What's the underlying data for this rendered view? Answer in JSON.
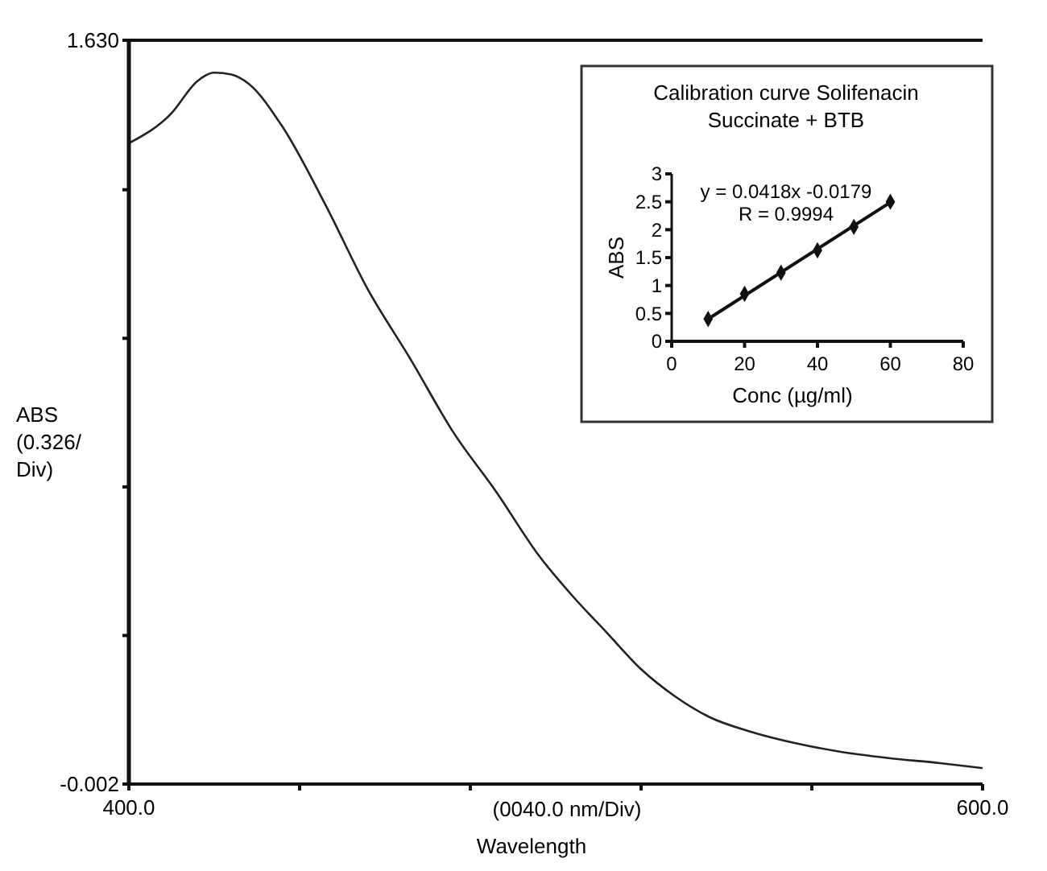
{
  "chart_data": [
    {
      "type": "line",
      "xlabel": "(0040.0 nm/Div)\nWavelength",
      "ylabel": "ABS\n(0.326/\nDiv)",
      "x": [
        400,
        410,
        416,
        420,
        424,
        428,
        436,
        446,
        456,
        466,
        476,
        486,
        496,
        504,
        512,
        520,
        528,
        536,
        546,
        556,
        566,
        578,
        590,
        600
      ],
      "series": [
        {
          "color": "#222222",
          "values": [
            1.404,
            1.47,
            1.54,
            1.559,
            1.555,
            1.535,
            1.44,
            1.27,
            1.083,
            0.93,
            0.77,
            0.64,
            0.5,
            0.41,
            0.33,
            0.25,
            0.19,
            0.145,
            0.112,
            0.088,
            0.07,
            0.055,
            0.044,
            0.033
          ]
        }
      ],
      "xlim": [
        400,
        600
      ],
      "xticks": [
        {
          "value": 400,
          "label": "400.0"
        },
        {
          "value": 440,
          "label": null
        },
        {
          "value": 480,
          "label": null
        },
        {
          "value": 520,
          "label": null
        },
        {
          "value": 560,
          "label": null
        },
        {
          "value": 600,
          "label": "600.0"
        }
      ],
      "ylim": [
        -0.002,
        1.63
      ],
      "yticks": [
        {
          "value": -0.002,
          "label": "-0.002"
        },
        {
          "value": 0.324,
          "label": null
        },
        {
          "value": 0.65,
          "label": null
        },
        {
          "value": 0.976,
          "label": null
        },
        {
          "value": 1.302,
          "label": null
        },
        {
          "value": 1.63,
          "label": "1.630"
        }
      ],
      "grid": false
    },
    {
      "type": "scatter",
      "title": "Calibration curve Solifenacin\nSuccinate + BTB",
      "xlabel": "Conc (µg/ml)",
      "ylabel": "ABS",
      "annotations": [
        "y = 0.0418x -0.0179",
        "R = 0.9994"
      ],
      "x": [
        10,
        20,
        30,
        40,
        50,
        60
      ],
      "series": [
        {
          "color": "#111111",
          "marker": "diamond",
          "values": [
            0.4,
            0.85,
            1.23,
            1.63,
            2.05,
            2.5
          ]
        },
        {
          "type": "line",
          "color": "#111111",
          "marker": "none",
          "x": [
            10,
            60
          ],
          "values": [
            0.4,
            2.49
          ]
        }
      ],
      "xlim": [
        0,
        80
      ],
      "xticks": [
        0,
        20,
        40,
        60,
        80
      ],
      "ylim": [
        0,
        3
      ],
      "yticks": [
        0,
        0.5,
        1,
        1.5,
        2,
        2.5,
        3
      ],
      "grid": false
    }
  ]
}
